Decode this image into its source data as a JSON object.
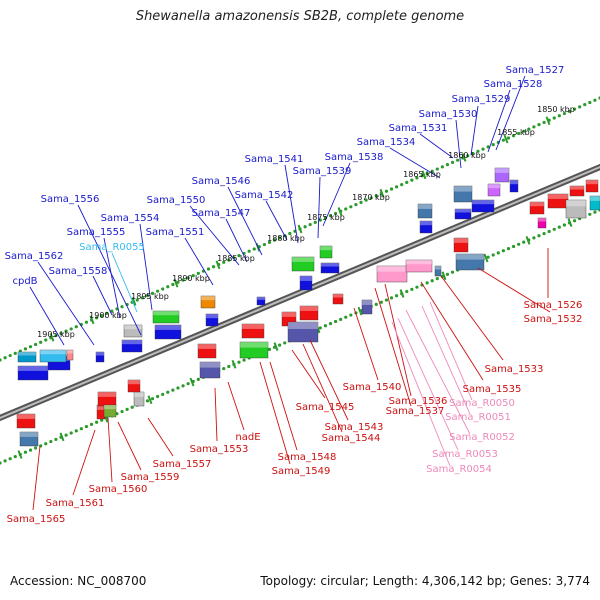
{
  "title": "Shewanella amazonensis SB2B, complete genome",
  "footer": {
    "accession": "Accession: NC_008700",
    "summary": "Topology: circular; Length: 4,306,142 bp; Genes: 3,774"
  },
  "colors": {
    "forward_label": "#1a1acc",
    "reverse_label": "#cc1111",
    "rna_forward_label": "#33bbee",
    "rna_reverse_label": "#ee88bb",
    "backbone": "#808080",
    "ticks": "#2a9a2a"
  },
  "tick_labels": [
    "1850 kbp",
    "1855 kbp",
    "1860 kbp",
    "1865 kbp",
    "1870 kbp",
    "1875 kbp",
    "1880 kbp",
    "1885 kbp",
    "1890 kbp",
    "1895 kbp",
    "1900 kbp",
    "1905 kbp"
  ],
  "forward_labels": [
    "Sama_1527",
    "Sama_1528",
    "Sama_1529",
    "Sama_1530",
    "Sama_1531",
    "Sama_1534",
    "Sama_1538",
    "Sama_1539",
    "Sama_1541",
    "Sama_1542",
    "Sama_1546",
    "Sama_1547",
    "Sama_1550",
    "Sama_1551",
    "Sama_1554",
    "Sama_1555",
    "Sama_1556",
    "Sama_1558",
    "Sama_1562",
    "cpdB"
  ],
  "forward_rna_labels": [
    "Sama_R0055"
  ],
  "reverse_labels": [
    "Sama_1526",
    "Sama_1532",
    "Sama_1533",
    "Sama_1535",
    "Sama_1536",
    "Sama_1537",
    "Sama_1540",
    "Sama_1543",
    "Sama_1544",
    "Sama_1545",
    "Sama_1548",
    "Sama_1549",
    "nadE",
    "Sama_1553",
    "Sama_1557",
    "Sama_1559",
    "Sama_1560",
    "Sama_1561",
    "Sama_1565"
  ],
  "reverse_rna_labels": [
    "Sama_R0050",
    "Sama_R0051",
    "Sama_R0052",
    "Sama_R0053",
    "Sama_R0054"
  ]
}
